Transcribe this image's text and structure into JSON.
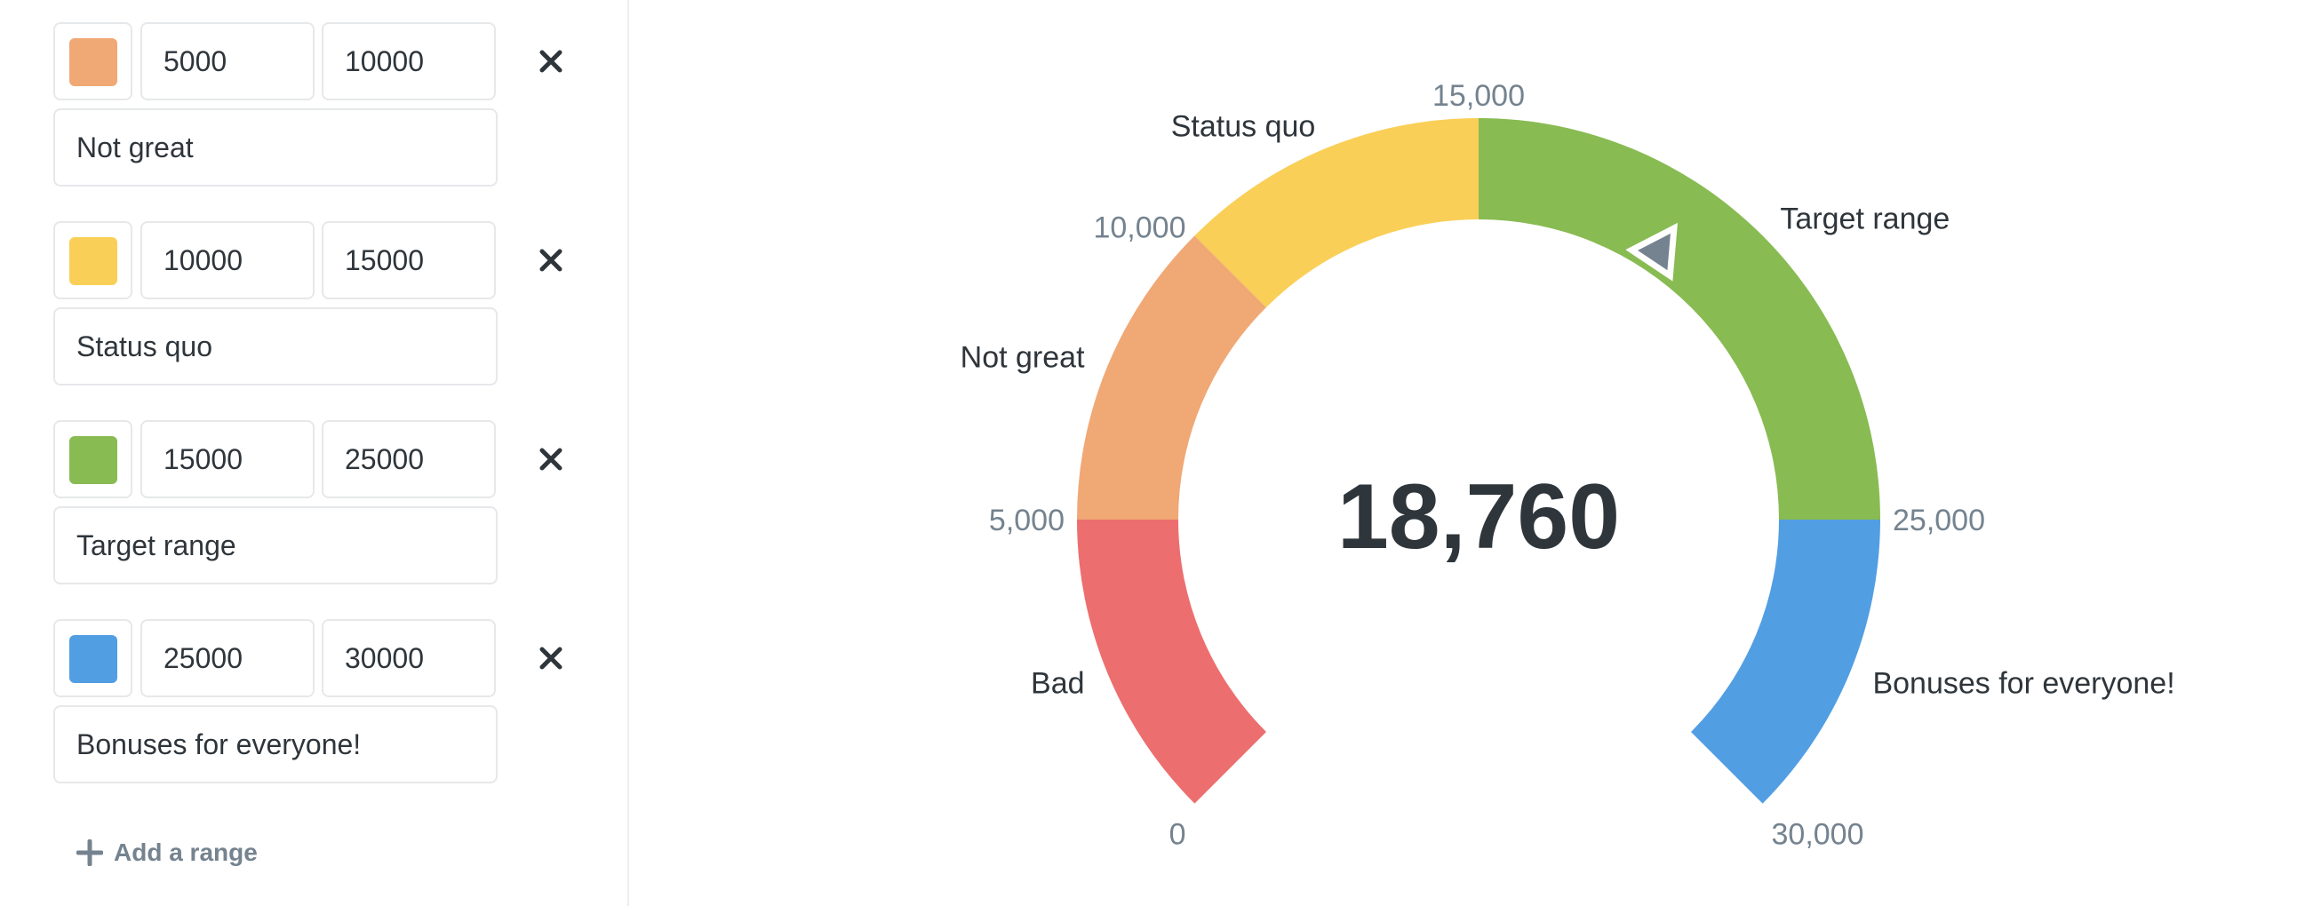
{
  "ranges": [
    {
      "color": "#F0A875",
      "min": "5000",
      "max": "10000",
      "label": "Not great"
    },
    {
      "color": "#F9CF57",
      "min": "10000",
      "max": "15000",
      "label": "Status quo"
    },
    {
      "color": "#88BB52",
      "min": "15000",
      "max": "25000",
      "label": "Target range"
    },
    {
      "color": "#519EE3",
      "min": "25000",
      "max": "30000",
      "label": "Bonuses for everyone!"
    }
  ],
  "add_range_label": "Add a range",
  "gauge": {
    "value": 18760,
    "value_display": "18,760",
    "min": 0,
    "max": 30000,
    "needle_color": "#74838F",
    "segments": [
      {
        "from": 0,
        "to": 5000,
        "color": "#ED6E6E",
        "label": "Bad"
      },
      {
        "from": 5000,
        "to": 10000,
        "color": "#F0A875",
        "label": "Not great"
      },
      {
        "from": 10000,
        "to": 15000,
        "color": "#F9CF57",
        "label": "Status quo"
      },
      {
        "from": 15000,
        "to": 25000,
        "color": "#88BB52",
        "label": "Target range"
      },
      {
        "from": 25000,
        "to": 30000,
        "color": "#519EE3",
        "label": "Bonuses for everyone!"
      }
    ],
    "ticks": [
      {
        "value": 0,
        "label": "0"
      },
      {
        "value": 5000,
        "label": "5,000"
      },
      {
        "value": 10000,
        "label": "10,000"
      },
      {
        "value": 15000,
        "label": "15,000"
      },
      {
        "value": 25000,
        "label": "25,000"
      },
      {
        "value": 30000,
        "label": "30,000"
      }
    ]
  }
}
